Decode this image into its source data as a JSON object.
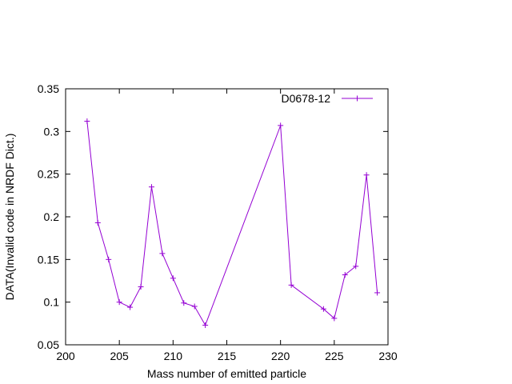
{
  "chart_data": {
    "type": "line",
    "xlabel": "Mass number of emitted particle",
    "ylabel": "DATA(Invalid code in NRDF Dict.)",
    "xlim": [
      200,
      230
    ],
    "ylim": [
      0.05,
      0.35
    ],
    "x_ticks": [
      200,
      205,
      210,
      215,
      220,
      225,
      230
    ],
    "y_ticks": [
      0.05,
      0.1,
      0.15,
      0.2,
      0.25,
      0.3,
      0.35
    ],
    "x_tick_labels": [
      "200",
      "205",
      "210",
      "215",
      "220",
      "225",
      "230"
    ],
    "y_tick_labels": [
      "0.05",
      "0.1",
      "0.15",
      "0.2",
      "0.25",
      "0.3",
      "0.35"
    ],
    "grid": false,
    "legend_position": "top-right",
    "series": [
      {
        "name": "D0678-12",
        "color": "#9400d3",
        "marker": "plus",
        "x": [
          202,
          203,
          204,
          205,
          206,
          207,
          208,
          209,
          210,
          211,
          212,
          213,
          220,
          221,
          224,
          225,
          226,
          227,
          228,
          229
        ],
        "y": [
          0.312,
          0.193,
          0.15,
          0.1,
          0.094,
          0.118,
          0.235,
          0.157,
          0.128,
          0.099,
          0.095,
          0.073,
          0.307,
          0.12,
          0.092,
          0.081,
          0.132,
          0.142,
          0.249,
          0.111
        ]
      }
    ]
  }
}
